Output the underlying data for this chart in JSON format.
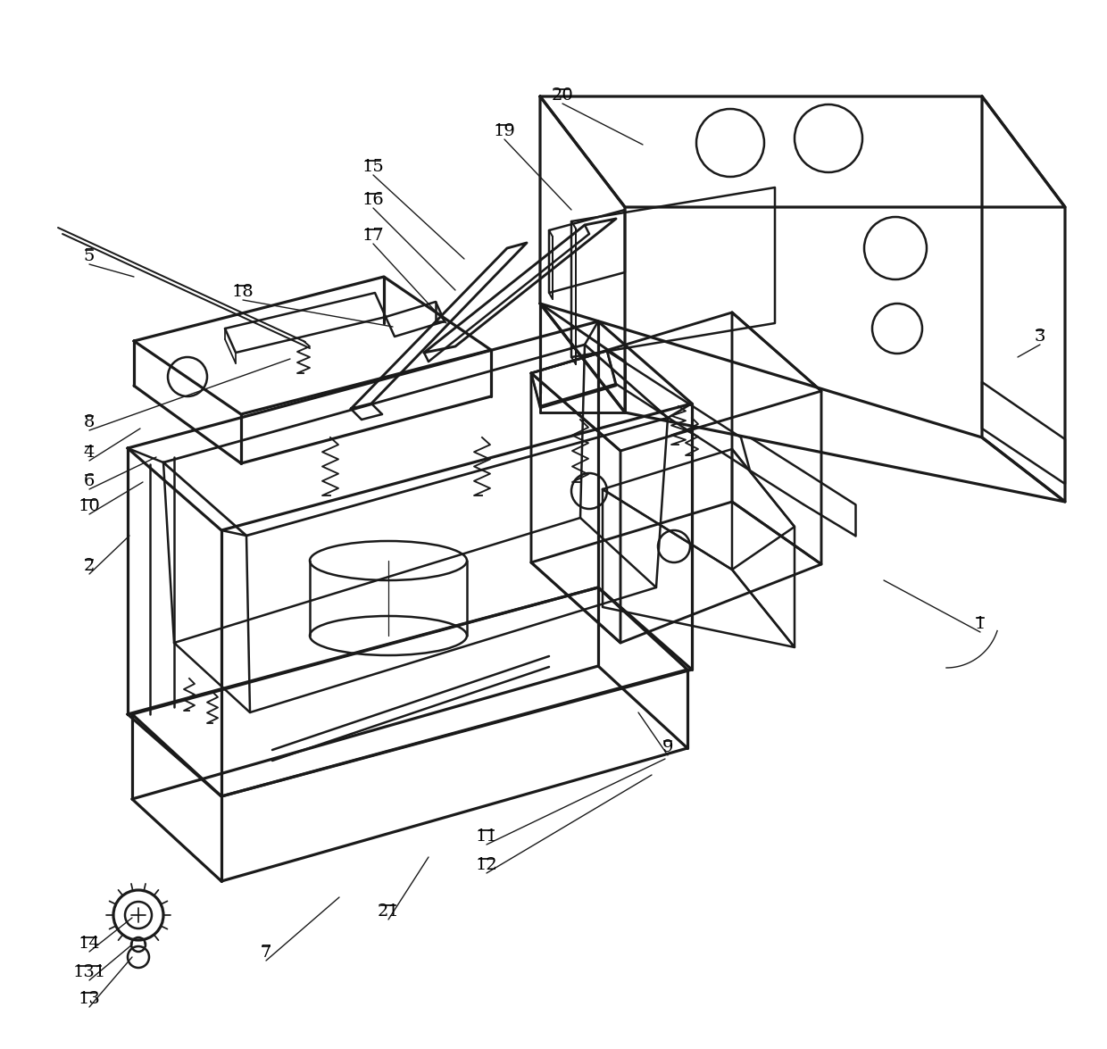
{
  "bg_color": "#ffffff",
  "line_color": "#1a1a1a",
  "lw": 1.8,
  "figsize": [
    12.4,
    11.75
  ],
  "dpi": 100
}
